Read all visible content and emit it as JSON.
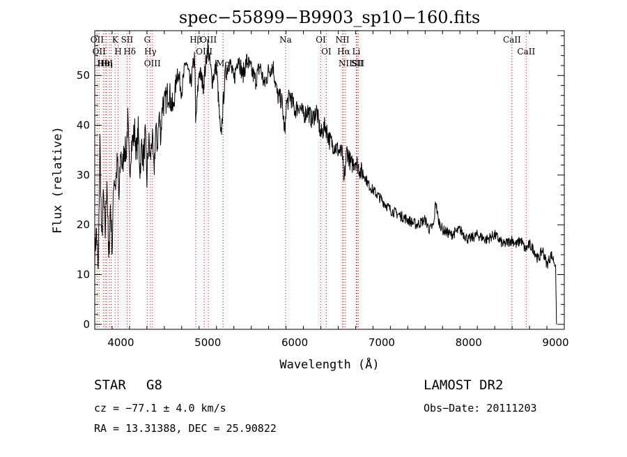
{
  "chart_data": {
    "type": "line",
    "title": "spec−55899−B9903_sp10−160.fits",
    "xlabel": "Wavelength (Å)",
    "ylabel": "Flux (relative)",
    "xlim": [
      3700,
      9100
    ],
    "ylim": [
      -1,
      59
    ],
    "xticks": [
      4000,
      5000,
      6000,
      7000,
      8000,
      9000
    ],
    "yticks": [
      0,
      10,
      20,
      30,
      40,
      50
    ],
    "line_color": "#000000",
    "marker_color": "#cc0000",
    "series": [
      {
        "x": [
          3700,
          3720,
          3740,
          3760,
          3780,
          3800,
          3820,
          3840,
          3860,
          3880,
          3900,
          3920,
          3940,
          3960,
          3980,
          4000,
          4020,
          4040,
          4060,
          4080,
          4100,
          4120,
          4140,
          4160,
          4180,
          4200,
          4220,
          4240,
          4260,
          4280,
          4300,
          4320,
          4340,
          4360,
          4380,
          4400,
          4420,
          4440,
          4460,
          4480,
          4500,
          4550,
          4600,
          4650,
          4700,
          4750,
          4800,
          4850,
          4860,
          4900,
          4950,
          5000,
          5050,
          5100,
          5150,
          5175,
          5200,
          5250,
          5300,
          5350,
          5400,
          5450,
          5500,
          5550,
          5600,
          5650,
          5700,
          5750,
          5800,
          5850,
          5890,
          5900,
          5950,
          6000,
          6050,
          6100,
          6150,
          6200,
          6250,
          6300,
          6350,
          6400,
          6450,
          6500,
          6550,
          6563,
          6600,
          6650,
          6700,
          6750,
          6800,
          6850,
          6900,
          6950,
          7000,
          7100,
          7200,
          7300,
          7400,
          7500,
          7550,
          7600,
          7620,
          7650,
          7700,
          7800,
          7900,
          8000,
          8100,
          8200,
          8300,
          8400,
          8500,
          8550,
          8600,
          8650,
          8700,
          8750,
          8800,
          8850,
          8900,
          8950,
          9000,
          9010
        ],
        "y": [
          14,
          19,
          10,
          37,
          16,
          26,
          18,
          30,
          12,
          24,
          15,
          30,
          28,
          33,
          25,
          35,
          31,
          36,
          34,
          41,
          30,
          36,
          37,
          39,
          34,
          39,
          31,
          36,
          33,
          38,
          29,
          37,
          33,
          38,
          30,
          39,
          36,
          42,
          38,
          45,
          44,
          47,
          43,
          51,
          47,
          53,
          48,
          54,
          40,
          51,
          48,
          56,
          49,
          52,
          37,
          44,
          50,
          53,
          49,
          54,
          50,
          53,
          51,
          49,
          52,
          48,
          51,
          52,
          46,
          45,
          38,
          44,
          46,
          43,
          44,
          42,
          43,
          41,
          43,
          38,
          40,
          37,
          36,
          35,
          34,
          28,
          35,
          32,
          33,
          31,
          30,
          28,
          27,
          26,
          25,
          23,
          22,
          21,
          20,
          21,
          19,
          20,
          25,
          21,
          19,
          18,
          19,
          17,
          18,
          17,
          18,
          16,
          17,
          16,
          17,
          15,
          16,
          15,
          13,
          15,
          12,
          14,
          12,
          0
        ]
      }
    ],
    "spectral_lines": [
      {
        "wl": 3727,
        "labels": [
          "OII"
        ]
      },
      {
        "wl": 3750,
        "labels": [
          "OII"
        ]
      },
      {
        "wl": 3798,
        "labels": [
          "Hθ"
        ]
      },
      {
        "wl": 3820,
        "labels": [
          "HeI"
        ]
      },
      {
        "wl": 3835,
        "labels": [
          "Hη"
        ]
      },
      {
        "wl": 3869,
        "labels": []
      },
      {
        "wl": 3889,
        "labels": []
      },
      {
        "wl": 3934,
        "labels": [
          "K"
        ]
      },
      {
        "wl": 3969,
        "labels": [
          "H"
        ]
      },
      {
        "wl": 4072,
        "labels": [
          "SII"
        ]
      },
      {
        "wl": 4102,
        "labels": [
          "Hδ"
        ]
      },
      {
        "wl": 4304,
        "labels": [
          "G"
        ]
      },
      {
        "wl": 4340,
        "labels": [
          "Hγ"
        ]
      },
      {
        "wl": 4363,
        "labels": [
          "OIII"
        ]
      },
      {
        "wl": 4861,
        "labels": [
          "Hβ"
        ]
      },
      {
        "wl": 4959,
        "labels": [
          "OIII"
        ]
      },
      {
        "wl": 5007,
        "labels": [
          "OIII"
        ]
      },
      {
        "wl": 5175,
        "labels": [
          "Mg"
        ]
      },
      {
        "wl": 5894,
        "labels": [
          "Na"
        ]
      },
      {
        "wl": 6300,
        "labels": [
          "OI"
        ]
      },
      {
        "wl": 6363,
        "labels": [
          "OI"
        ]
      },
      {
        "wl": 6548,
        "labels": [
          "NII"
        ]
      },
      {
        "wl": 6563,
        "labels": [
          "Hα"
        ]
      },
      {
        "wl": 6583,
        "labels": [
          "NII"
        ]
      },
      {
        "wl": 6708,
        "labels": [
          "Li"
        ]
      },
      {
        "wl": 6717,
        "labels": [
          "SII"
        ]
      },
      {
        "wl": 6731,
        "labels": [
          "SII"
        ]
      },
      {
        "wl": 8498,
        "labels": [
          "CaII"
        ]
      },
      {
        "wl": 8662,
        "labels": [
          "CaII"
        ]
      }
    ]
  },
  "info": {
    "class": "STAR",
    "subclass": "G8",
    "survey": "LAMOST  DR2",
    "cz": "cz = −77.1 ± 4.0 km/s",
    "obs_date": "Obs−Date: 20111203",
    "radec": "RA =  13.31388, DEC =  25.90822"
  }
}
